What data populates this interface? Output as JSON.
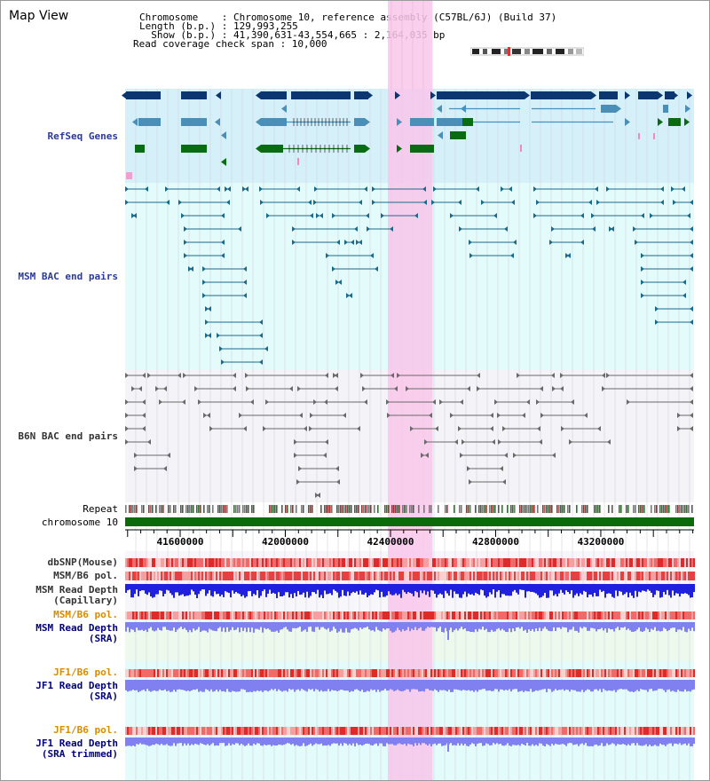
{
  "view": {
    "title": "Map View"
  },
  "info": {
    "line1": "Chromosome    : Chromosome 10, reference assembly (C57BL/6J) (Build 37)",
    "line2": "Length (b.p.) : 129,993,255",
    "line3": "  Show (b.p.) : 41,390,631-43,554,665 : 2,164,035 bp",
    "line4": "Read coverage check span : 10,000"
  },
  "tracks": {
    "refseq": "RefSeq Genes",
    "msm_bac": "MSM BAC end pairs",
    "b6n_bac": "B6N BAC end pairs",
    "repeat": "Repeat",
    "chromosome": "chromosome 10",
    "dbsnp": "dbSNP(Mouse)",
    "msm_b6_pol_1": "MSM/B6 pol.",
    "msm_read_depth_cap_1": "MSM Read Depth",
    "msm_read_depth_cap_2": "(Capillary)",
    "msm_b6_pol_2": "MSM/B6 pol.",
    "msm_read_depth_sra_1": "MSM Read Depth",
    "msm_read_depth_sra_2": "(SRA)",
    "jf1_b6_pol_1": "JF1/B6 pol.",
    "jf1_read_depth_sra_1": "JF1 Read Depth",
    "jf1_read_depth_sra_2": "(SRA)",
    "jf1_b6_pol_2": "JF1/B6 pol.",
    "jf1_read_depth_trim_1": "JF1 Read Depth",
    "jf1_read_depth_trim_2": "(SRA trimmed)"
  },
  "axis": {
    "ticks": [
      "41600000",
      "42000000",
      "42400000",
      "42800000",
      "43200000"
    ]
  },
  "highlight": {
    "from": "42390000",
    "to": "42560000"
  },
  "colors": {
    "refseq_bg": "#d6f0fa",
    "msm_bg": "#e4fbfb",
    "b6n_bg": "#f3f3f8",
    "highlight": "#f9c6ea",
    "gene_dark": "#0b3670",
    "gene_mid": "#4a8fb8",
    "gene_green": "#096b12",
    "msm_line": "#1a6a8a",
    "b6n_line": "#6a6a6a",
    "chrom_green": "#0b6b0b",
    "depth_blue": "#2020e0",
    "depth_light": "#8080f0",
    "pol_red": "#e83030",
    "sra_bg": "#eef9ee",
    "jf1_bg": "#e4fbfb"
  }
}
